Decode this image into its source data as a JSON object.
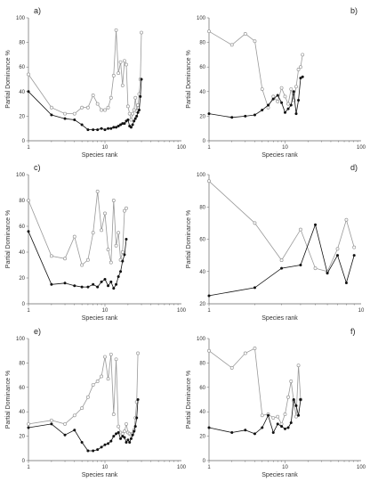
{
  "figure": {
    "xlabel": "Species rank",
    "ylabel": "Partial Dominance %"
  },
  "chart_data": [
    {
      "type": "line",
      "panel_label": "a)",
      "xscale": "log",
      "xlim": [
        1,
        100
      ],
      "xticks": [
        1,
        10,
        100
      ],
      "ylim": [
        0,
        100
      ],
      "yticks": [
        0,
        20,
        40,
        60,
        80,
        100
      ],
      "xlabel": "Species rank",
      "ylabel": "Partial Dominance %",
      "colors": {
        "grey": "#999999",
        "black": "#111111"
      },
      "series": [
        {
          "marker": "open-circle",
          "color": "grey",
          "x": [
            1,
            2,
            3,
            4,
            5,
            6,
            7,
            8,
            9,
            10,
            11,
            12,
            13,
            14,
            15,
            16,
            17,
            18,
            19,
            20,
            21,
            22,
            23,
            24,
            25,
            26,
            27,
            28,
            29,
            30
          ],
          "y": [
            54,
            27,
            22,
            22,
            27,
            27,
            37,
            30,
            25,
            25,
            27,
            35,
            53,
            90,
            55,
            64,
            45,
            65,
            62,
            28,
            22,
            17,
            22,
            25,
            35,
            24,
            29,
            38,
            50,
            88
          ]
        },
        {
          "marker": "filled-circle",
          "color": "black",
          "x": [
            1,
            2,
            3,
            4,
            5,
            6,
            7,
            8,
            9,
            10,
            11,
            12,
            13,
            14,
            15,
            16,
            17,
            18,
            19,
            20,
            21,
            22,
            23,
            24,
            25,
            26,
            27,
            28,
            29,
            30
          ],
          "y": [
            40,
            21,
            18,
            17,
            13,
            9,
            9,
            9,
            10,
            9,
            10,
            10,
            11,
            11,
            12,
            13,
            14,
            14,
            16,
            17,
            12,
            11,
            13,
            16,
            18,
            20,
            23,
            25,
            36,
            50
          ]
        }
      ]
    },
    {
      "type": "line",
      "panel_label": "b)",
      "xscale": "log",
      "xlim": [
        1,
        100
      ],
      "xticks": [
        1,
        10,
        100
      ],
      "ylim": [
        0,
        100
      ],
      "yticks": [
        0,
        20,
        40,
        60,
        80,
        100
      ],
      "xlabel": "Species rank",
      "ylabel": "Partial Dominance %",
      "colors": {
        "grey": "#999999",
        "black": "#111111"
      },
      "series": [
        {
          "marker": "open-circle",
          "color": "grey",
          "x": [
            1,
            2,
            3,
            4,
            5,
            6,
            7,
            8,
            9,
            10,
            11,
            12,
            13,
            14,
            15,
            16,
            17
          ],
          "y": [
            89,
            78,
            87,
            81,
            42,
            27,
            36,
            32,
            43,
            36,
            30,
            42,
            33,
            44,
            58,
            60,
            70
          ]
        },
        {
          "marker": "filled-circle",
          "color": "black",
          "x": [
            1,
            2,
            3,
            4,
            5,
            6,
            7,
            8,
            9,
            10,
            11,
            12,
            13,
            14,
            15,
            16,
            17
          ],
          "y": [
            22,
            19,
            20,
            21,
            25,
            29,
            34,
            37,
            31,
            23,
            26,
            29,
            40,
            22,
            33,
            51,
            52
          ]
        }
      ]
    },
    {
      "type": "line",
      "panel_label": "c)",
      "xscale": "log",
      "xlim": [
        1,
        100
      ],
      "xticks": [
        1,
        10,
        100
      ],
      "ylim": [
        0,
        100
      ],
      "yticks": [
        0,
        20,
        40,
        60,
        80,
        100
      ],
      "xlabel": "Species rank",
      "ylabel": "Partial Dominance %",
      "colors": {
        "grey": "#999999",
        "black": "#111111"
      },
      "series": [
        {
          "marker": "open-circle",
          "color": "grey",
          "x": [
            1,
            2,
            3,
            4,
            5,
            6,
            7,
            8,
            9,
            10,
            11,
            12,
            13,
            14,
            15,
            16,
            17,
            18,
            19
          ],
          "y": [
            80,
            37,
            35,
            52,
            30,
            34,
            55,
            87,
            57,
            70,
            42,
            32,
            80,
            45,
            55,
            34,
            40,
            72,
            74
          ]
        },
        {
          "marker": "filled-circle",
          "color": "black",
          "x": [
            1,
            2,
            3,
            4,
            5,
            6,
            7,
            8,
            9,
            10,
            11,
            12,
            13,
            14,
            15,
            16,
            17,
            18,
            19
          ],
          "y": [
            56,
            15,
            16,
            14,
            13,
            13,
            15,
            13,
            17,
            19,
            14,
            17,
            12,
            15,
            21,
            25,
            33,
            38,
            50
          ]
        }
      ]
    },
    {
      "type": "line",
      "panel_label": "d)",
      "xscale": "log",
      "xlim": [
        1,
        10
      ],
      "xticks": [
        1,
        10
      ],
      "ylim": [
        20,
        100
      ],
      "yticks": [
        20,
        40,
        60,
        80,
        100
      ],
      "xlabel": "Species rank",
      "ylabel": "Partial Dominance %",
      "colors": {
        "grey": "#999999",
        "black": "#111111"
      },
      "series": [
        {
          "marker": "open-circle",
          "color": "grey",
          "x": [
            1,
            2,
            3,
            4,
            5,
            6,
            7,
            8,
            9
          ],
          "y": [
            96,
            70,
            47,
            66,
            42,
            40,
            54,
            72,
            55
          ]
        },
        {
          "marker": "filled-circle",
          "color": "black",
          "x": [
            1,
            2,
            3,
            4,
            5,
            6,
            7,
            8,
            9
          ],
          "y": [
            25,
            30,
            42,
            44,
            69,
            39,
            50,
            33,
            50
          ]
        }
      ]
    },
    {
      "type": "line",
      "panel_label": "e)",
      "xscale": "log",
      "xlim": [
        1,
        100
      ],
      "xticks": [
        1,
        10,
        100
      ],
      "ylim": [
        0,
        100
      ],
      "yticks": [
        0,
        20,
        40,
        60,
        80,
        100
      ],
      "xlabel": "Species rank",
      "ylabel": "Partial Dominance %",
      "colors": {
        "grey": "#999999",
        "black": "#111111"
      },
      "series": [
        {
          "marker": "open-circle",
          "color": "grey",
          "x": [
            1,
            2,
            3,
            4,
            5,
            6,
            7,
            8,
            9,
            10,
            11,
            12,
            13,
            14,
            15,
            16,
            17,
            18,
            19,
            20,
            21,
            22,
            23,
            24,
            25,
            26,
            27
          ],
          "y": [
            30,
            33,
            30,
            37,
            43,
            52,
            62,
            65,
            69,
            85,
            67,
            87,
            38,
            83,
            28,
            23,
            22,
            24,
            30,
            23,
            22,
            21,
            22,
            25,
            35,
            48,
            88
          ]
        },
        {
          "marker": "filled-circle",
          "color": "black",
          "x": [
            1,
            2,
            3,
            4,
            5,
            6,
            7,
            8,
            9,
            10,
            11,
            12,
            13,
            14,
            15,
            16,
            17,
            18,
            19,
            20,
            21,
            22,
            23,
            24,
            25,
            26,
            27
          ],
          "y": [
            27,
            30,
            21,
            25,
            15,
            8,
            8,
            9,
            11,
            13,
            14,
            16,
            20,
            22,
            23,
            18,
            20,
            19,
            15,
            17,
            15,
            18,
            21,
            24,
            28,
            35,
            50
          ]
        }
      ]
    },
    {
      "type": "line",
      "panel_label": "f)",
      "xscale": "log",
      "xlim": [
        1,
        100
      ],
      "xticks": [
        1,
        10,
        100
      ],
      "ylim": [
        0,
        100
      ],
      "yticks": [
        0,
        20,
        40,
        60,
        80,
        100
      ],
      "xlabel": "Species rank",
      "ylabel": "Partial Dominance %",
      "colors": {
        "grey": "#999999",
        "black": "#111111"
      },
      "series": [
        {
          "marker": "open-circle",
          "color": "grey",
          "x": [
            1,
            2,
            3,
            4,
            5,
            6,
            7,
            8,
            9,
            10,
            11,
            12,
            13,
            14,
            15,
            16
          ],
          "y": [
            90,
            76,
            88,
            92,
            37,
            38,
            35,
            36,
            30,
            38,
            52,
            65,
            49,
            36,
            78,
            50
          ]
        },
        {
          "marker": "filled-circle",
          "color": "black",
          "x": [
            1,
            2,
            3,
            4,
            5,
            6,
            7,
            8,
            9,
            10,
            11,
            12,
            13,
            14,
            15,
            16
          ],
          "y": [
            27,
            23,
            25,
            22,
            27,
            37,
            23,
            30,
            28,
            26,
            27,
            31,
            50,
            45,
            37,
            50
          ]
        }
      ]
    }
  ]
}
